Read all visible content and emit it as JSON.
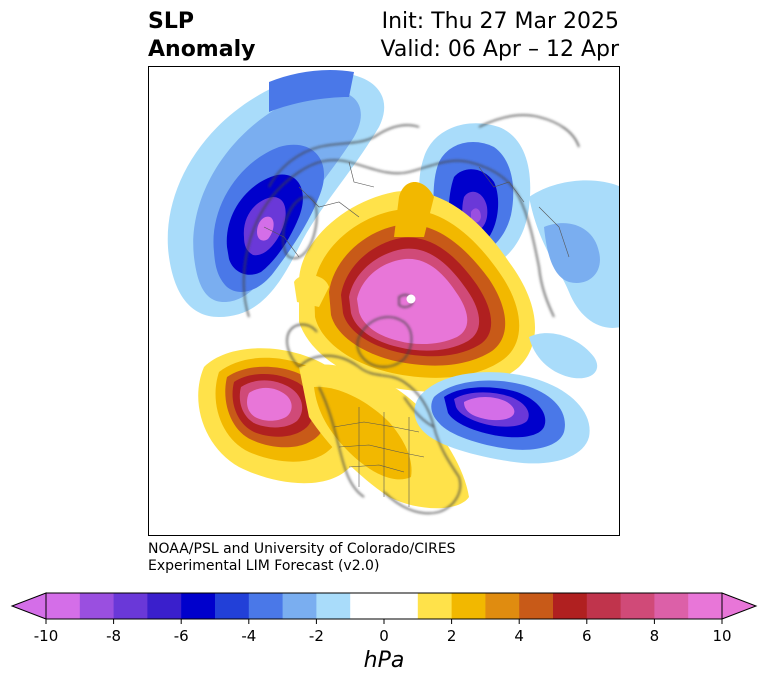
{
  "header": {
    "title_line1": "SLP",
    "title_line2": "Anomaly",
    "init_text": "Init: Thu 27 Mar 2025",
    "valid_text": "Valid: 06 Apr – 12 Apr"
  },
  "credit": {
    "line1": "NOAA/PSL and University of Colorado/CIRES",
    "line2": "Experimental LIM Forecast (v2.0)"
  },
  "colorbar": {
    "unit": "hPa",
    "tick_labels": [
      "-10",
      "-8",
      "-6",
      "-4",
      "-2",
      "0",
      "2",
      "4",
      "6",
      "8",
      "10"
    ],
    "colors": [
      "#d46ee8",
      "#9a4fe0",
      "#6a38d8",
      "#3a1fcc",
      "#0000cc",
      "#2240d8",
      "#4a78e8",
      "#7aaef0",
      "#a9dcfa",
      "#ffffff",
      "#ffffff",
      "#ffe24a",
      "#f2b800",
      "#e08c10",
      "#c85a18",
      "#b02020",
      "#c0344c",
      "#d04a78",
      "#dc60a8",
      "#e876d8"
    ]
  },
  "map": {
    "projection": "north polar stereographic",
    "anomalies": [
      {
        "name": "arctic-high",
        "sign": "positive",
        "peak_hpa": 10
      },
      {
        "name": "north-pacific-high",
        "sign": "positive",
        "peak_hpa": 10
      },
      {
        "name": "north-atlantic-low",
        "sign": "negative",
        "peak_hpa": -10
      },
      {
        "name": "siberian-low",
        "sign": "negative",
        "peak_hpa": -10
      },
      {
        "name": "european-low",
        "sign": "negative",
        "peak_hpa": -8
      }
    ]
  }
}
